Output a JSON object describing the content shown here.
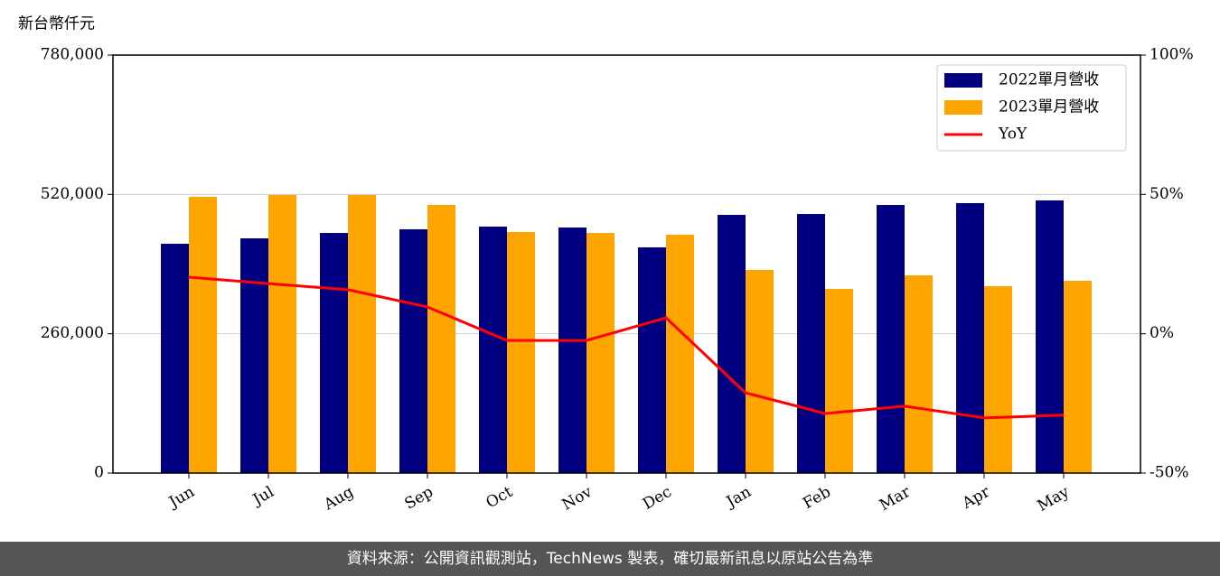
{
  "chart_data": {
    "type": "bar_line",
    "y_axis_label": "新台幣仟元",
    "categories": [
      "Jun",
      "Jul",
      "Aug",
      "Sep",
      "Oct",
      "Nov",
      "Dec",
      "Jan",
      "Feb",
      "Mar",
      "Apr",
      "May"
    ],
    "series": [
      {
        "name": "2022單月營收",
        "color": "#000080",
        "values": [
          427900,
          438000,
          448100,
          454900,
          459900,
          458200,
          421200,
          481800,
          483500,
          500300,
          503700,
          508800
        ]
      },
      {
        "name": "2023單月營收",
        "color": "#ffa500",
        "values": [
          515500,
          518900,
          518900,
          500300,
          449800,
          448100,
          444800,
          379000,
          343700,
          368900,
          348700,
          358800
        ]
      },
      {
        "name": "YoY",
        "color": "#ff0000",
        "axis": "y2",
        "values": [
          20.3,
          18.0,
          15.8,
          9.6,
          -2.4,
          -2.4,
          5.7,
          -21.2,
          -28.6,
          -26.0,
          -30.2,
          -29.2
        ]
      }
    ],
    "ylim": [
      0,
      780000
    ],
    "yticks": [
      0,
      {
        "value": 260000,
        "label": "260,000"
      },
      {
        "value": 520000,
        "label": "520,000"
      },
      {
        "value": 780000,
        "label": "780,000"
      }
    ],
    "y2lim": [
      -50,
      100
    ],
    "y2ticks": [
      {
        "value": -50,
        "label": "-50%"
      },
      {
        "value": 0,
        "label": "0%"
      },
      {
        "value": 50,
        "label": "50%"
      },
      {
        "value": 100,
        "label": "100%"
      }
    ],
    "grid": true,
    "legend": "upper right"
  },
  "footer": "資料來源：公開資訊觀測站，TechNews 製表，確切最新訊息以原站公告為準"
}
